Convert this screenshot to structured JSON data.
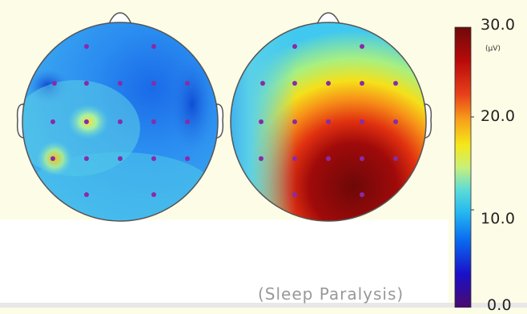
{
  "colorbar": {
    "max_label": "30.0",
    "unit": "(μV)",
    "tick_20": "20.0",
    "tick_10": "10.0",
    "min_label": "0.0",
    "colors": [
      "#4a0a6e",
      "#1a10c8",
      "#0a6af0",
      "#25b8f0",
      "#5cdcd8",
      "#c8f07a",
      "#f5e81a",
      "#f7a01a",
      "#e8401a",
      "#b80a0a",
      "#6e0a0a"
    ]
  },
  "maps": [
    {
      "name": "left-head-map",
      "base": "#3a9af0"
    },
    {
      "name": "right-head-map",
      "base": "#cc1a0a"
    }
  ],
  "caption": "(Sleep Paralysis)"
}
